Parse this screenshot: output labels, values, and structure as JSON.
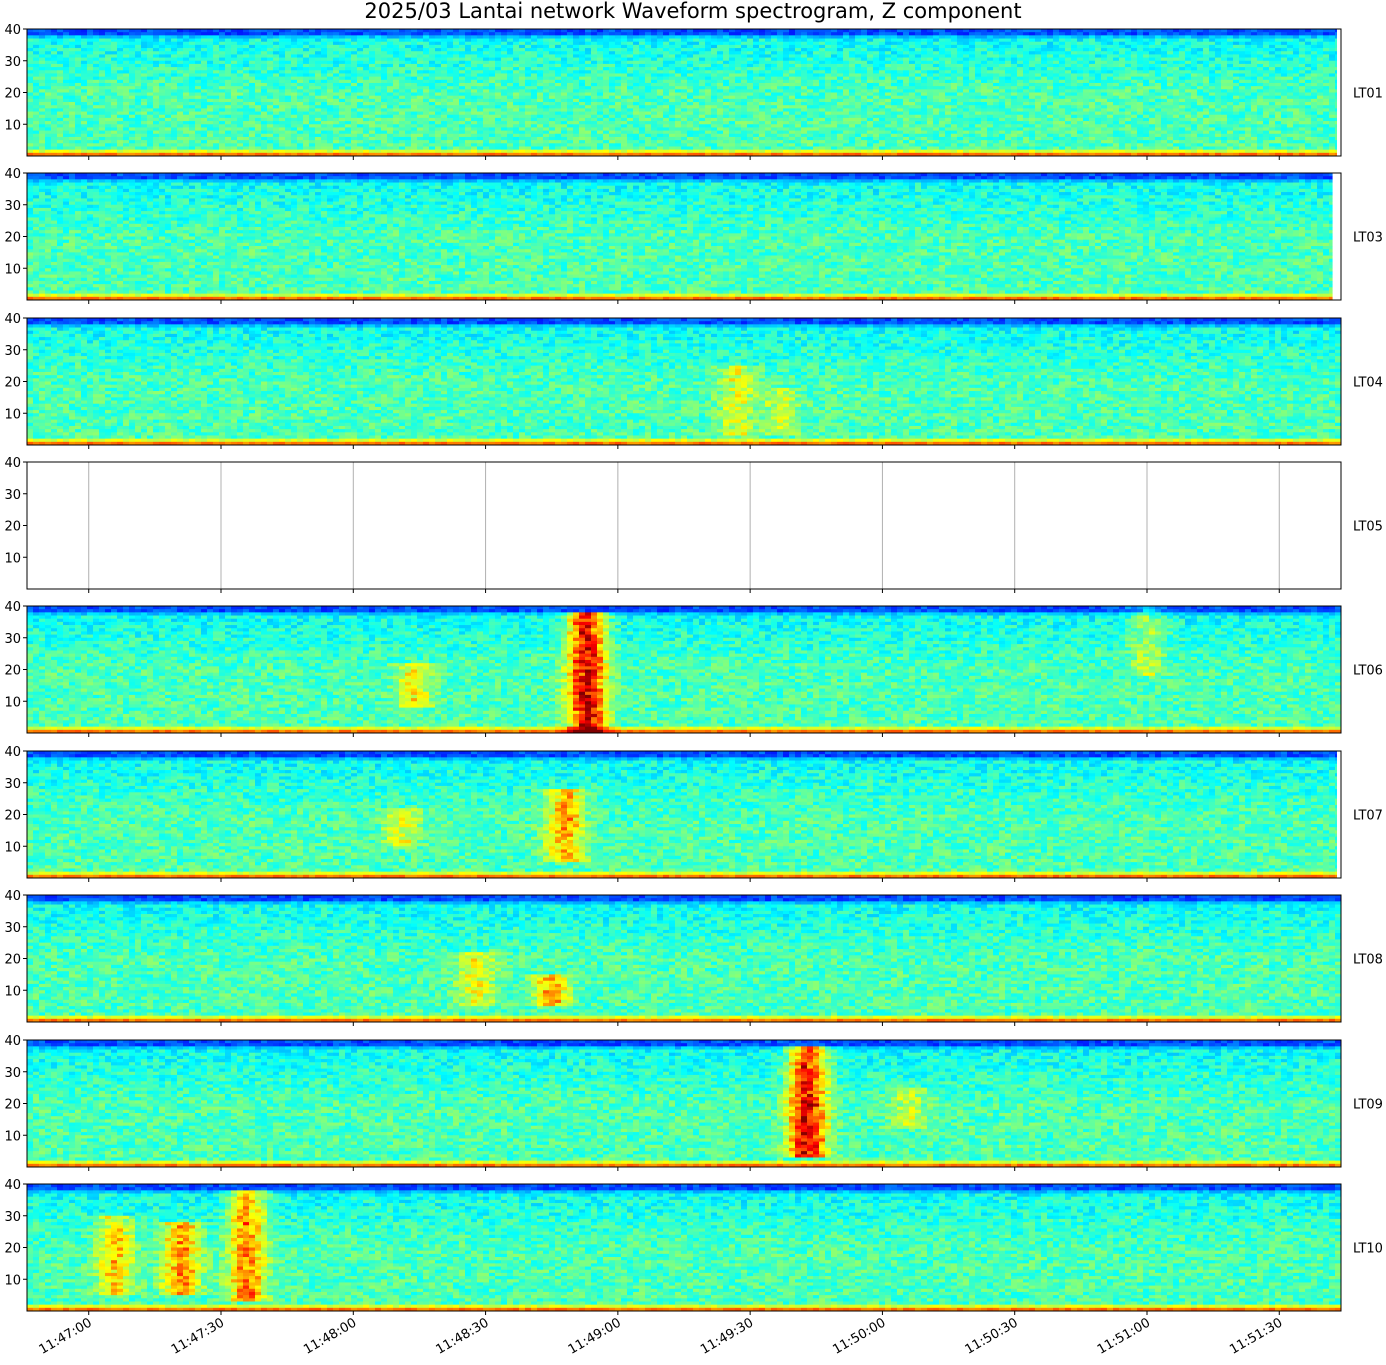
{
  "chart_data": {
    "type": "heatmap",
    "title": "2025/03 Lantai network Waveform spectrogram, Z component",
    "colormap": "jet",
    "y_ticks": [
      "40",
      "30",
      "20",
      "10"
    ],
    "ylim": [
      0,
      40
    ],
    "x_ticks": [
      "11:47:00",
      "11:47:30",
      "11:48:00",
      "11:48:30",
      "11:49:00",
      "11:49:30",
      "11:50:00",
      "11:50:30",
      "11:51:00",
      "11:51:30"
    ],
    "x_range": [
      "11:46:46",
      "11:51:44"
    ],
    "panels": [
      {
        "station": "LT01",
        "has_data": true,
        "data_end": "11:51:43",
        "events": []
      },
      {
        "station": "LT03",
        "has_data": true,
        "data_end": "11:51:42",
        "events": []
      },
      {
        "station": "LT04",
        "has_data": true,
        "data_end": "11:51:44",
        "events": [
          {
            "time": "11:49:27",
            "fmin": 3,
            "fmax": 25,
            "level": 0.3
          },
          {
            "time": "11:49:37",
            "fmin": 3,
            "fmax": 18,
            "level": 0.25
          }
        ]
      },
      {
        "station": "LT05",
        "has_data": false,
        "grid": true,
        "events": []
      },
      {
        "station": "LT06",
        "has_data": true,
        "data_end": "11:51:44",
        "events": [
          {
            "time": "11:48:53",
            "fmin": 0,
            "fmax": 38,
            "level": 1.0
          },
          {
            "time": "11:48:14",
            "fmin": 8,
            "fmax": 22,
            "level": 0.38
          },
          {
            "time": "11:51:00",
            "fmin": 18,
            "fmax": 40,
            "level": 0.25
          }
        ]
      },
      {
        "station": "LT07",
        "has_data": true,
        "data_end": "11:51:43",
        "events": [
          {
            "time": "11:48:48",
            "fmin": 5,
            "fmax": 28,
            "level": 0.55
          },
          {
            "time": "11:48:11",
            "fmin": 10,
            "fmax": 22,
            "level": 0.3
          }
        ]
      },
      {
        "station": "LT08",
        "has_data": true,
        "data_end": "11:51:44",
        "events": [
          {
            "time": "11:48:28",
            "fmin": 5,
            "fmax": 22,
            "level": 0.35
          },
          {
            "time": "11:48:45",
            "fmin": 5,
            "fmax": 15,
            "level": 0.55
          }
        ]
      },
      {
        "station": "LT09",
        "has_data": true,
        "data_end": "11:51:44",
        "events": [
          {
            "time": "11:49:43",
            "fmin": 3,
            "fmax": 38,
            "level": 0.95
          },
          {
            "time": "11:50:06",
            "fmin": 12,
            "fmax": 25,
            "level": 0.25
          }
        ]
      },
      {
        "station": "LT10",
        "has_data": true,
        "data_end": "11:51:44",
        "events": [
          {
            "time": "11:47:06",
            "fmin": 5,
            "fmax": 30,
            "level": 0.45
          },
          {
            "time": "11:47:21",
            "fmin": 5,
            "fmax": 28,
            "level": 0.6
          },
          {
            "time": "11:47:36",
            "fmin": 3,
            "fmax": 38,
            "level": 0.65
          }
        ]
      }
    ]
  }
}
